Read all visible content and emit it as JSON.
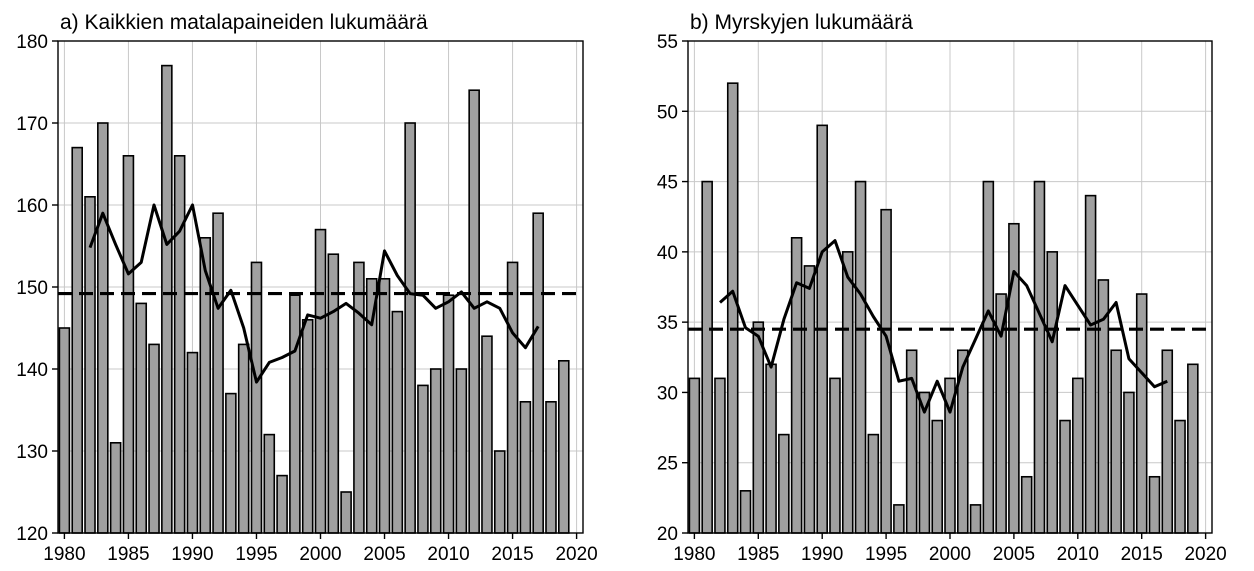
{
  "chart_data": [
    {
      "type": "bar",
      "title": "a) Kaikkien matalapaineiden lukumäärä",
      "xlabel": "",
      "ylabel": "",
      "xlim": [
        1979.5,
        2020.5
      ],
      "ylim": [
        120,
        180
      ],
      "xticks": [
        1980,
        1985,
        1990,
        1995,
        2000,
        2005,
        2010,
        2015,
        2020
      ],
      "yticks": [
        120,
        130,
        140,
        150,
        160,
        170,
        180
      ],
      "grid": true,
      "bar_color": "#a0a0a0",
      "line_color": "#000000",
      "years": [
        1980,
        1981,
        1982,
        1983,
        1984,
        1985,
        1986,
        1987,
        1988,
        1989,
        1990,
        1991,
        1992,
        1993,
        1994,
        1995,
        1996,
        1997,
        1998,
        1999,
        2000,
        2001,
        2002,
        2003,
        2004,
        2005,
        2006,
        2007,
        2008,
        2009,
        2010,
        2011,
        2012,
        2013,
        2014,
        2015,
        2016,
        2017,
        2018,
        2019
      ],
      "values": [
        145,
        167,
        161,
        170,
        131,
        166,
        148,
        143,
        177,
        166,
        142,
        156,
        159,
        137,
        143,
        153,
        132,
        127,
        149,
        146,
        157,
        154,
        125,
        153,
        151,
        151,
        147,
        170,
        138,
        140,
        149,
        140,
        174,
        144,
        130,
        153,
        136,
        159,
        136,
        141
      ],
      "mean": 149.2,
      "smoothed": {
        "x": [
          1982,
          1983,
          1984,
          1985,
          1986,
          1987,
          1988,
          1989,
          1990,
          1991,
          1992,
          1993,
          1994,
          1995,
          1996,
          1997,
          1998,
          1999,
          2000,
          2001,
          2002,
          2003,
          2004,
          2005,
          2006,
          2007,
          2008,
          2009,
          2010,
          2011,
          2012,
          2013,
          2014,
          2015,
          2016,
          2017
        ],
        "y": [
          154.8,
          159.0,
          155.2,
          151.6,
          153.0,
          160.0,
          155.2,
          156.8,
          160.0,
          152.0,
          147.4,
          149.6,
          145.0,
          138.4,
          140.8,
          141.4,
          142.2,
          146.6,
          146.2,
          147.0,
          148.0,
          146.8,
          145.4,
          154.4,
          151.4,
          149.2,
          149.0,
          147.4,
          148.2,
          149.4,
          147.4,
          148.2,
          147.4,
          144.4,
          142.6,
          145.2
        ]
      }
    },
    {
      "type": "bar",
      "title": "b) Myrskyjen lukumäärä",
      "xlabel": "",
      "ylabel": "",
      "xlim": [
        1979.5,
        2020.5
      ],
      "ylim": [
        20,
        55
      ],
      "xticks": [
        1980,
        1985,
        1990,
        1995,
        2000,
        2005,
        2010,
        2015,
        2020
      ],
      "yticks": [
        20,
        25,
        30,
        35,
        40,
        45,
        50,
        55
      ],
      "grid": true,
      "bar_color": "#a0a0a0",
      "line_color": "#000000",
      "years": [
        1980,
        1981,
        1982,
        1983,
        1984,
        1985,
        1986,
        1987,
        1988,
        1989,
        1990,
        1991,
        1992,
        1993,
        1994,
        1995,
        1996,
        1997,
        1998,
        1999,
        2000,
        2001,
        2002,
        2003,
        2004,
        2005,
        2006,
        2007,
        2008,
        2009,
        2010,
        2011,
        2012,
        2013,
        2014,
        2015,
        2016,
        2017,
        2018,
        2019
      ],
      "values": [
        31,
        45,
        31,
        52,
        23,
        35,
        32,
        27,
        41,
        39,
        49,
        31,
        40,
        45,
        27,
        43,
        22,
        33,
        30,
        28,
        31,
        33,
        22,
        45,
        37,
        42,
        24,
        45,
        40,
        28,
        31,
        44,
        38,
        33,
        30,
        37,
        24,
        33,
        28,
        32
      ],
      "mean": 34.5,
      "smoothed": {
        "x": [
          1982,
          1983,
          1984,
          1985,
          1986,
          1987,
          1988,
          1989,
          1990,
          1991,
          1992,
          1993,
          1994,
          1995,
          1996,
          1997,
          1998,
          1999,
          2000,
          2001,
          2002,
          2003,
          2004,
          2005,
          2006,
          2007,
          2008,
          2009,
          2010,
          2011,
          2012,
          2013,
          2014,
          2015,
          2016,
          2017
        ],
        "y": [
          36.4,
          37.2,
          34.6,
          34.0,
          31.8,
          35.2,
          37.8,
          37.4,
          40.0,
          40.8,
          38.2,
          37.0,
          35.4,
          34.0,
          30.8,
          31.0,
          28.6,
          30.8,
          28.6,
          31.8,
          33.8,
          35.8,
          34.0,
          38.6,
          37.6,
          35.6,
          33.6,
          37.6,
          36.2,
          34.8,
          35.2,
          36.4,
          32.4,
          31.4,
          30.4,
          30.8
        ]
      }
    }
  ]
}
